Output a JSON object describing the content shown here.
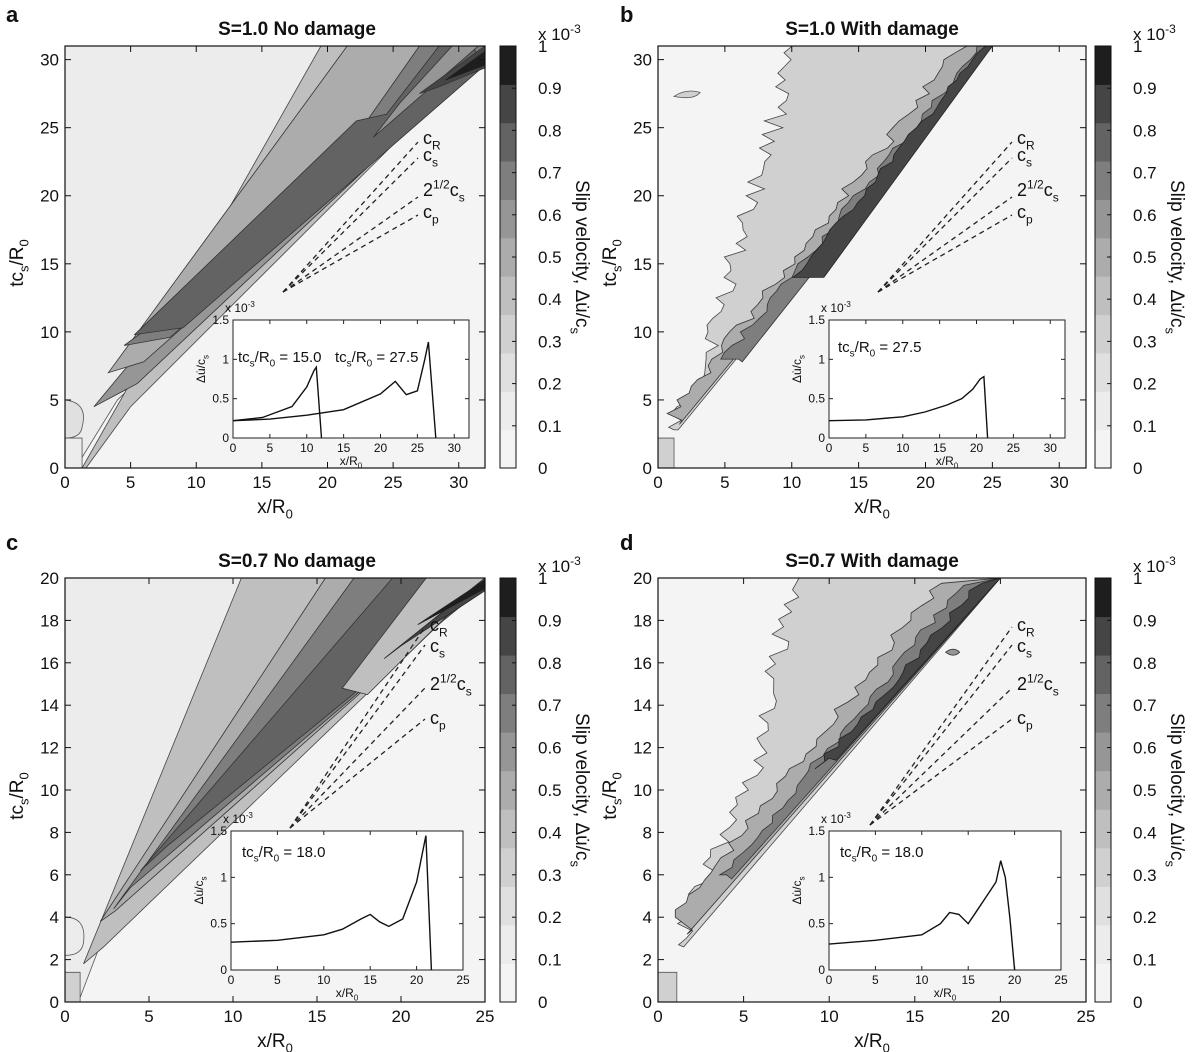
{
  "figure": {
    "colorbar": {
      "label": "Slip velocity, Δu̇/c",
      "label_sub": "s",
      "scale_text": "x 10",
      "scale_exp": "-3",
      "ticks": [
        "0",
        "0.1",
        "0.2",
        "0.3",
        "0.4",
        "0.5",
        "0.6",
        "0.7",
        "0.8",
        "0.9",
        "1"
      ],
      "colors": [
        "#f4f4f4",
        "#ececec",
        "#e0e0e0",
        "#d0d0d0",
        "#bfbfbf",
        "#acacac",
        "#969696",
        "#7e7e7e",
        "#636363",
        "#454545",
        "#1e1e1e"
      ]
    },
    "axes": {
      "xlabel": "x/R",
      "xlabel_sub": "0",
      "ylabel": "tc",
      "ylabel_sub1": "s",
      "ylabel_mid": "/R",
      "ylabel_sub2": "0"
    },
    "speed_labels": [
      {
        "name": "cR",
        "text": "c",
        "sub": "R"
      },
      {
        "name": "cs",
        "text": "c",
        "sub": "s"
      },
      {
        "name": "sqrt2cs",
        "text": "2",
        "sup": "1/2",
        "tail": "c",
        "sub": "s"
      },
      {
        "name": "cp",
        "text": "c",
        "sub": "p"
      }
    ],
    "inset_common": {
      "ylabel": "Δu̇/c",
      "ylabel_sub": "s",
      "xlabel": "x/R",
      "xlabel_sub": "0",
      "scale_text": "x 10",
      "scale_exp": "-3",
      "yticks": [
        "0",
        "0.5",
        "1",
        "1.5"
      ]
    }
  },
  "panels": [
    {
      "letter": "a",
      "title": "S=1.0 No damage",
      "xticks": [
        "0",
        "5",
        "10",
        "15",
        "20",
        "25",
        "30"
      ],
      "yticks": [
        "0",
        "5",
        "10",
        "15",
        "20",
        "25",
        "30"
      ],
      "inset": {
        "xticks": [
          "0",
          "5",
          "10",
          "15",
          "20",
          "25",
          "30"
        ],
        "annotations": [
          {
            "pre": "tc",
            "sub": "s",
            "mid": "/R",
            "sub2": "0",
            "post": " = 15.0"
          },
          {
            "pre": "tc",
            "sub": "s",
            "mid": "/R",
            "sub2": "0",
            "post": " = 27.5"
          }
        ]
      }
    },
    {
      "letter": "b",
      "title": "S=1.0 With damage",
      "xticks": [
        "0",
        "5",
        "10",
        "15",
        "20",
        "25",
        "30"
      ],
      "yticks": [
        "0",
        "5",
        "10",
        "15",
        "20",
        "25",
        "30"
      ],
      "inset": {
        "xticks": [
          "0",
          "5",
          "10",
          "15",
          "20",
          "25",
          "30"
        ],
        "annotations": [
          {
            "pre": "tc",
            "sub": "s",
            "mid": "/R",
            "sub2": "0",
            "post": " = 27.5"
          }
        ]
      }
    },
    {
      "letter": "c",
      "title": "S=0.7 No damage",
      "xticks": [
        "0",
        "5",
        "10",
        "15",
        "20",
        "25"
      ],
      "yticks": [
        "0",
        "2",
        "4",
        "6",
        "8",
        "10",
        "12",
        "14",
        "16",
        "18",
        "20"
      ],
      "inset": {
        "xticks": [
          "0",
          "5",
          "10",
          "15",
          "20",
          "25"
        ],
        "annotations": [
          {
            "pre": "tc",
            "sub": "s",
            "mid": "/R",
            "sub2": "0",
            "post": " = 18.0"
          }
        ]
      }
    },
    {
      "letter": "d",
      "title": "S=0.7 With damage",
      "xticks": [
        "0",
        "5",
        "10",
        "15",
        "20",
        "25"
      ],
      "yticks": [
        "0",
        "2",
        "4",
        "6",
        "8",
        "10",
        "12",
        "14",
        "16",
        "18",
        "20"
      ],
      "inset": {
        "xticks": [
          "0",
          "5",
          "10",
          "15",
          "20",
          "25"
        ],
        "annotations": [
          {
            "pre": "tc",
            "sub": "s",
            "mid": "/R",
            "sub2": "0",
            "post": " = 18.0"
          }
        ]
      }
    }
  ],
  "chart_data": [
    {
      "type": "heatmap",
      "panel": "a",
      "title": "S=1.0 No damage",
      "xlabel": "x/R0",
      "ylabel": "tcs/R0",
      "xlim": [
        0,
        32
      ],
      "ylim": [
        0,
        31
      ],
      "colorbar": {
        "label": "Slip velocity, Δu̇/cs",
        "range": [
          0,
          0.001
        ]
      },
      "description_values": {
        "rupture_front_wedge_origin": [
          2,
          4.5
        ],
        "front_at_t_31": 32
      },
      "inset": {
        "type": "line",
        "xlabel": "x/R0",
        "ylabel": "Δu̇/cs (x 10^-3)",
        "xlim": [
          0,
          32
        ],
        "ylim": [
          0,
          1.5
        ],
        "series": [
          {
            "name": "tcs/R0 = 15.0",
            "x": [
              0,
              4,
              8,
              10,
              11,
              11.3,
              12
            ],
            "y": [
              0.22,
              0.26,
              0.4,
              0.65,
              0.86,
              0.9,
              0
            ]
          },
          {
            "name": "tcs/R0 = 27.5",
            "x": [
              0,
              5,
              10,
              15,
              20,
              22,
              23.5,
              25,
              26,
              26.5,
              27.5
            ],
            "y": [
              0.22,
              0.24,
              0.29,
              0.36,
              0.56,
              0.72,
              0.55,
              0.6,
              1.0,
              1.22,
              0
            ]
          }
        ]
      }
    },
    {
      "type": "heatmap",
      "panel": "b",
      "title": "S=1.0 With damage",
      "xlabel": "x/R0",
      "ylabel": "tcs/R0",
      "xlim": [
        0,
        32
      ],
      "ylim": [
        0,
        31
      ],
      "colorbar": {
        "label": "Slip velocity, Δu̇/cs",
        "range": [
          0,
          0.001
        ]
      },
      "description_values": {
        "front_at_t_31": 25
      },
      "inset": {
        "type": "line",
        "xlabel": "x/R0",
        "ylabel": "Δu̇/cs (x 10^-3)",
        "xlim": [
          0,
          32
        ],
        "ylim": [
          0,
          1.5
        ],
        "series": [
          {
            "name": "tcs/R0 = 27.5",
            "x": [
              0,
              5,
              10,
              13,
              16,
              18,
              19.5,
              20.5,
              21,
              21.5
            ],
            "y": [
              0.22,
              0.23,
              0.27,
              0.33,
              0.42,
              0.5,
              0.62,
              0.75,
              0.78,
              0
            ]
          }
        ]
      }
    },
    {
      "type": "heatmap",
      "panel": "c",
      "title": "S=0.7 No damage",
      "xlabel": "x/R0",
      "ylabel": "tcs/R0",
      "xlim": [
        0,
        25
      ],
      "ylim": [
        0,
        20
      ],
      "colorbar": {
        "label": "Slip velocity, Δu̇/cs",
        "range": [
          0,
          0.001
        ]
      },
      "description_values": {
        "front_at_t_20": 25
      },
      "inset": {
        "type": "line",
        "xlabel": "x/R0",
        "ylabel": "Δu̇/cs (x 10^-3)",
        "xlim": [
          0,
          25
        ],
        "ylim": [
          0,
          1.5
        ],
        "series": [
          {
            "name": "tcs/R0 = 18.0",
            "x": [
              0,
              5,
              10,
              12,
              14,
              15,
              16,
              17,
              18.5,
              20,
              20.7,
              21,
              21.6
            ],
            "y": [
              0.3,
              0.32,
              0.38,
              0.44,
              0.55,
              0.6,
              0.52,
              0.47,
              0.55,
              0.95,
              1.3,
              1.45,
              0
            ]
          }
        ]
      }
    },
    {
      "type": "heatmap",
      "panel": "d",
      "title": "S=0.7 With damage",
      "xlabel": "x/R0",
      "ylabel": "tcs/R0",
      "xlim": [
        0,
        25
      ],
      "ylim": [
        0,
        20
      ],
      "colorbar": {
        "label": "Slip velocity, Δu̇/cs",
        "range": [
          0,
          0.001
        ]
      },
      "description_values": {
        "front_at_t_20": 20
      },
      "inset": {
        "type": "line",
        "xlabel": "x/R0",
        "ylabel": "Δu̇/cs (x 10^-3)",
        "xlim": [
          0,
          25
        ],
        "ylim": [
          0,
          1.5
        ],
        "series": [
          {
            "name": "tcs/R0 = 18.0",
            "x": [
              0,
              5,
              10,
              12,
              13,
              14,
              15,
              16,
              17,
              18,
              18.5,
              19,
              19.5,
              20
            ],
            "y": [
              0.28,
              0.32,
              0.38,
              0.5,
              0.62,
              0.6,
              0.5,
              0.65,
              0.8,
              0.95,
              1.18,
              1.0,
              0.55,
              0
            ]
          }
        ]
      }
    }
  ]
}
